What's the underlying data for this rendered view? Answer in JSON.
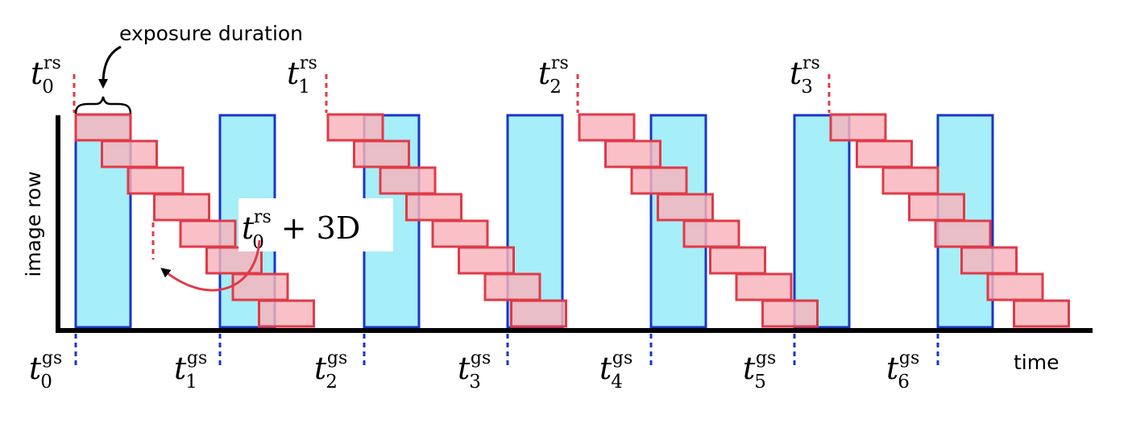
{
  "labels": {
    "exposure_duration": "exposure duration",
    "y_axis": "image row",
    "x_axis": "time",
    "annotation_base": "t",
    "annotation_sub": "0",
    "annotation_sup": "rs",
    "annotation_tail": "+ 3D"
  },
  "rolling_shutter_times": [
    {
      "base": "t",
      "sub": "0",
      "sup": "rs"
    },
    {
      "base": "t",
      "sub": "1",
      "sup": "rs"
    },
    {
      "base": "t",
      "sub": "2",
      "sup": "rs"
    },
    {
      "base": "t",
      "sub": "3",
      "sup": "rs"
    }
  ],
  "global_shutter_times": [
    {
      "base": "t",
      "sub": "0",
      "sup": "gs"
    },
    {
      "base": "t",
      "sub": "1",
      "sup": "gs"
    },
    {
      "base": "t",
      "sub": "2",
      "sup": "gs"
    },
    {
      "base": "t",
      "sub": "3",
      "sup": "gs"
    },
    {
      "base": "t",
      "sub": "4",
      "sup": "gs"
    },
    {
      "base": "t",
      "sub": "5",
      "sup": "gs"
    },
    {
      "base": "t",
      "sub": "6",
      "sup": "gs"
    }
  ],
  "colors": {
    "global_exposure_fill": "#a6eef8",
    "global_exposure_stroke": "#1a35c8",
    "row_exposure_fill": "#f8b3bb",
    "row_exposure_stroke": "#e03a48",
    "axis": "#000000",
    "rs_marker": "#e03a48",
    "gs_marker": "#1a35c8",
    "arrow": "#e03a48"
  }
}
